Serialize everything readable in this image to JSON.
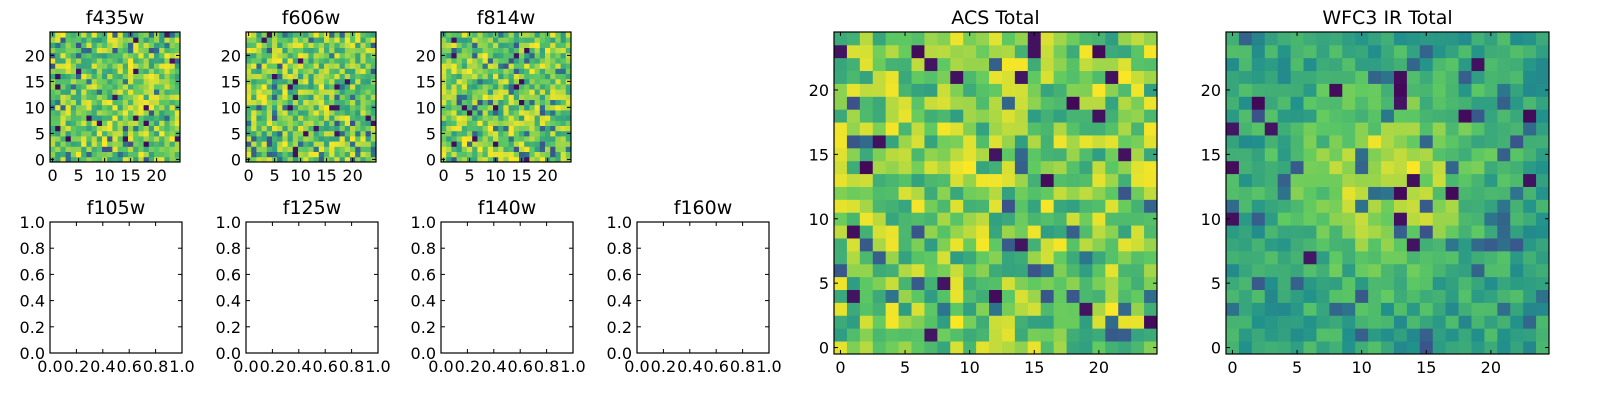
{
  "chart_data": [
    {
      "type": "heatmap",
      "title": "f435w",
      "grid_size": 25,
      "xlim": [
        -0.5,
        24.5
      ],
      "ylim": [
        -0.5,
        24.5
      ],
      "xticks": [
        0,
        5,
        10,
        15,
        20
      ],
      "yticks": [
        0,
        5,
        10,
        15,
        20
      ],
      "seed": 11,
      "mode": "noise",
      "has_data": true
    },
    {
      "type": "heatmap",
      "title": "f606w",
      "grid_size": 25,
      "xlim": [
        -0.5,
        24.5
      ],
      "ylim": [
        -0.5,
        24.5
      ],
      "xticks": [
        0,
        5,
        10,
        15,
        20
      ],
      "yticks": [
        0,
        5,
        10,
        15,
        20
      ],
      "seed": 23,
      "mode": "noise",
      "has_data": true
    },
    {
      "type": "heatmap",
      "title": "f814w",
      "grid_size": 25,
      "xlim": [
        -0.5,
        24.5
      ],
      "ylim": [
        -0.5,
        24.5
      ],
      "xticks": [
        0,
        5,
        10,
        15,
        20
      ],
      "yticks": [
        0,
        5,
        10,
        15,
        20
      ],
      "seed": 37,
      "mode": "noise",
      "has_data": true
    },
    {
      "type": "heatmap",
      "title": "f105w",
      "xlim": [
        0.0,
        1.0
      ],
      "ylim": [
        0.0,
        1.0
      ],
      "xticks": [
        0.0,
        0.2,
        0.4,
        0.6,
        0.8,
        1.0
      ],
      "yticks": [
        0.0,
        0.2,
        0.4,
        0.6,
        0.8,
        1.0
      ],
      "has_data": false
    },
    {
      "type": "heatmap",
      "title": "f125w",
      "xlim": [
        0.0,
        1.0
      ],
      "ylim": [
        0.0,
        1.0
      ],
      "xticks": [
        0.0,
        0.2,
        0.4,
        0.6,
        0.8,
        1.0
      ],
      "yticks": [
        0.0,
        0.2,
        0.4,
        0.6,
        0.8,
        1.0
      ],
      "has_data": false
    },
    {
      "type": "heatmap",
      "title": "f140w",
      "xlim": [
        0.0,
        1.0
      ],
      "ylim": [
        0.0,
        1.0
      ],
      "xticks": [
        0.0,
        0.2,
        0.4,
        0.6,
        0.8,
        1.0
      ],
      "yticks": [
        0.0,
        0.2,
        0.4,
        0.6,
        0.8,
        1.0
      ],
      "has_data": false
    },
    {
      "type": "heatmap",
      "title": "f160w",
      "xlim": [
        0.0,
        1.0
      ],
      "ylim": [
        0.0,
        1.0
      ],
      "xticks": [
        0.0,
        0.2,
        0.4,
        0.6,
        0.8,
        1.0
      ],
      "yticks": [
        0.0,
        0.2,
        0.4,
        0.6,
        0.8,
        1.0
      ],
      "has_data": false
    },
    {
      "type": "heatmap",
      "title": "ACS Total",
      "grid_size": 25,
      "xlim": [
        -0.5,
        24.5
      ],
      "ylim": [
        -0.5,
        24.5
      ],
      "xticks": [
        0,
        5,
        10,
        15,
        20
      ],
      "yticks": [
        0,
        5,
        10,
        15,
        20
      ],
      "seed": 51,
      "mode": "noise",
      "has_data": true
    },
    {
      "type": "heatmap",
      "title": "WFC3 IR Total",
      "grid_size": 25,
      "xlim": [
        -0.5,
        24.5
      ],
      "ylim": [
        -0.5,
        24.5
      ],
      "xticks": [
        0,
        5,
        10,
        15,
        20
      ],
      "yticks": [
        0,
        5,
        10,
        15,
        20
      ],
      "seed": 73,
      "mode": "blob",
      "has_data": true
    }
  ],
  "colormap": [
    "#440154",
    "#3b528b",
    "#21918c",
    "#5ec962",
    "#fde725"
  ]
}
